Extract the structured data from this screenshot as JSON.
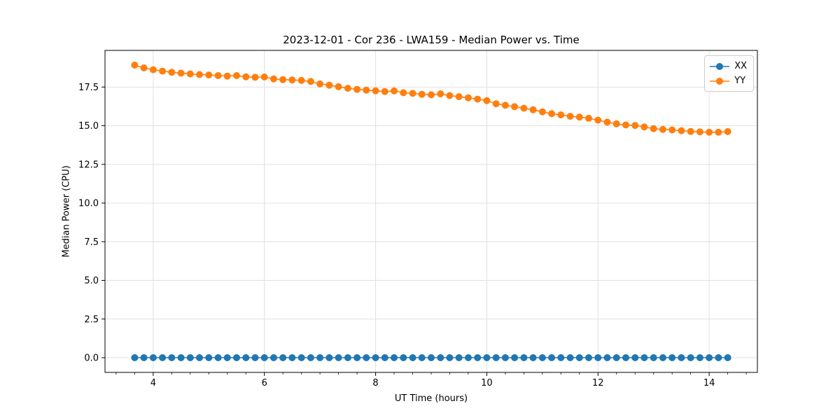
{
  "title": "2023-12-01 - Cor 236 - LWA159 - Median Power vs. Time",
  "chart_data": {
    "type": "line",
    "title": "2023-12-01 - Cor 236 - LWA159 - Median Power vs. Time",
    "xlabel": "UT Time (hours)",
    "ylabel": "Median Power (CPU)",
    "xlim": [
      3.133,
      14.867
    ],
    "ylim": [
      -0.95,
      19.87
    ],
    "grid": true,
    "legend_position": "upper right",
    "x_major_ticks": [
      4,
      6,
      8,
      10,
      12,
      14
    ],
    "x_major_tick_labels": [
      "4",
      "6",
      "8",
      "10",
      "12",
      "14"
    ],
    "x_minor_step": 0.33333,
    "y_major_ticks": [
      0,
      2.5,
      5,
      7.5,
      10,
      12.5,
      15,
      17.5
    ],
    "y_major_tick_labels": [
      "0.0",
      "2.5",
      "5.0",
      "7.5",
      "10.0",
      "12.5",
      "15.0",
      "17.5"
    ],
    "x": [
      3.667,
      3.833,
      4.0,
      4.167,
      4.333,
      4.5,
      4.667,
      4.833,
      5.0,
      5.167,
      5.333,
      5.5,
      5.667,
      5.833,
      6.0,
      6.167,
      6.333,
      6.5,
      6.667,
      6.833,
      7.0,
      7.167,
      7.333,
      7.5,
      7.667,
      7.833,
      8.0,
      8.167,
      8.333,
      8.5,
      8.667,
      8.833,
      9.0,
      9.167,
      9.333,
      9.5,
      9.667,
      9.833,
      10.0,
      10.167,
      10.333,
      10.5,
      10.667,
      10.833,
      11.0,
      11.167,
      11.333,
      11.5,
      11.667,
      11.833,
      12.0,
      12.167,
      12.333,
      12.5,
      12.667,
      12.833,
      13.0,
      13.167,
      13.333,
      13.5,
      13.667,
      13.833,
      14.0,
      14.167,
      14.333
    ],
    "series": [
      {
        "name": "XX",
        "color": "#1f77b4",
        "marker": "circle",
        "values": [
          0,
          0,
          0,
          0,
          0,
          0,
          0,
          0,
          0,
          0,
          0,
          0,
          0,
          0,
          0,
          0,
          0,
          0,
          0,
          0,
          0,
          0,
          0,
          0,
          0,
          0,
          0,
          0,
          0,
          0,
          0,
          0,
          0,
          0,
          0,
          0,
          0,
          0,
          0,
          0,
          0,
          0,
          0,
          0,
          0,
          0,
          0,
          0,
          0,
          0,
          0,
          0,
          0,
          0,
          0,
          0,
          0,
          0,
          0,
          0,
          0,
          0,
          0,
          0,
          0
        ]
      },
      {
        "name": "YY",
        "color": "#ff7f0e",
        "marker": "circle",
        "values": [
          18.92,
          18.74,
          18.62,
          18.53,
          18.46,
          18.4,
          18.35,
          18.31,
          18.28,
          18.24,
          18.21,
          18.24,
          18.16,
          18.13,
          18.15,
          18.03,
          17.98,
          17.96,
          17.93,
          17.86,
          17.7,
          17.62,
          17.52,
          17.42,
          17.35,
          17.3,
          17.26,
          17.21,
          17.25,
          17.13,
          17.09,
          17.03,
          17.0,
          17.06,
          16.95,
          16.88,
          16.8,
          16.72,
          16.62,
          16.42,
          16.32,
          16.23,
          16.13,
          16.03,
          15.9,
          15.78,
          15.7,
          15.61,
          15.56,
          15.48,
          15.36,
          15.23,
          15.12,
          15.05,
          15.02,
          14.92,
          14.81,
          14.76,
          14.73,
          14.68,
          14.63,
          14.6,
          14.58,
          14.58,
          14.62
        ]
      }
    ],
    "style": {
      "grid_color": "#e0e0e0",
      "spine_color": "#000000",
      "tick_color": "#000000",
      "marker_radius": 5,
      "line_width": 1.6
    }
  }
}
